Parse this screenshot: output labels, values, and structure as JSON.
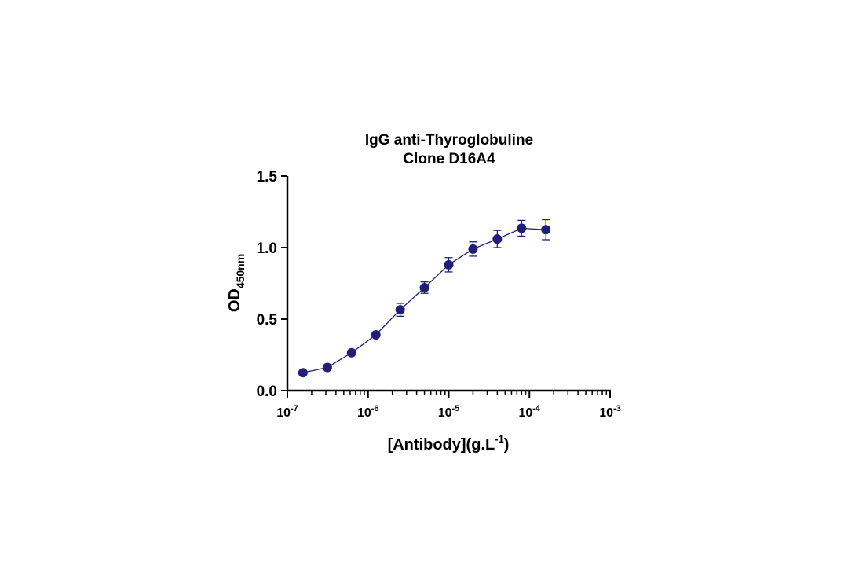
{
  "chart_data": {
    "type": "scatter",
    "title": [
      "IgG anti-Thyroglobuline",
      "Clone D16A4"
    ],
    "xlabel": "[Antibody](g.L",
    "xlabel_superscript": "-1",
    "xlabel_suffix": ")",
    "ylabel": "OD",
    "ylabel_subscript": "450nm",
    "xscale": "log",
    "xlim": [
      1e-07,
      0.001
    ],
    "ylim": [
      0.0,
      1.5
    ],
    "x_ticks": [
      {
        "base": "10",
        "exp": "-7"
      },
      {
        "base": "10",
        "exp": "-6"
      },
      {
        "base": "10",
        "exp": "-5"
      },
      {
        "base": "10",
        "exp": "-4"
      },
      {
        "base": "10",
        "exp": "-3"
      }
    ],
    "y_ticks": [
      "0.0",
      "0.5",
      "1.0",
      "1.5"
    ],
    "grid": false,
    "marker_color": "#1f1f7a",
    "series": [
      {
        "x": [
          1.56e-07,
          3.13e-07,
          6.25e-07,
          1.25e-06,
          2.5e-06,
          5e-06,
          1e-05,
          2e-05,
          4e-05,
          8e-05,
          0.00016
        ],
        "y": [
          0.125,
          0.162,
          0.265,
          0.39,
          0.565,
          0.72,
          0.88,
          0.99,
          1.06,
          1.135,
          1.125
        ],
        "error": [
          0.0,
          0.0,
          0.0,
          0.0,
          0.045,
          0.04,
          0.05,
          0.05,
          0.06,
          0.055,
          0.07
        ]
      }
    ]
  }
}
